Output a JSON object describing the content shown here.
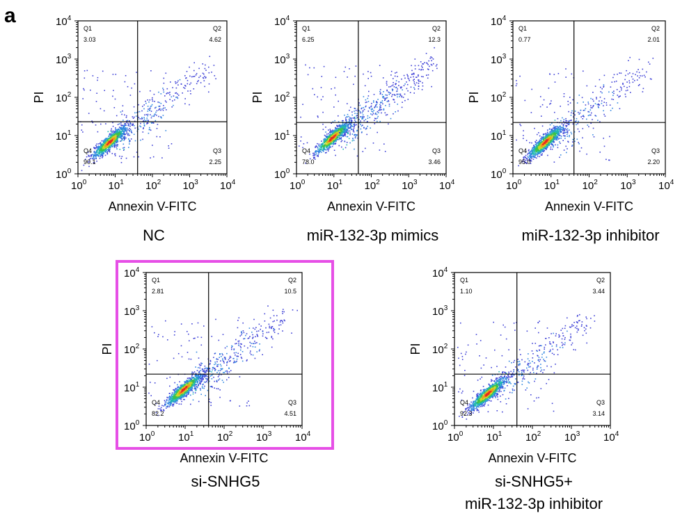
{
  "figure": {
    "panel_letter": "a",
    "highlight_color": "#e64fe6"
  },
  "chart_data": [
    {
      "type": "scatter",
      "caption": [
        "NC"
      ],
      "xlabel": "Annexin V-FITC",
      "ylabel": "PI",
      "scale": "log",
      "xlim": [
        1,
        10000
      ],
      "ylim": [
        1,
        10000
      ],
      "ticks": [
        "0",
        "1",
        "2",
        "3",
        "4"
      ],
      "tick_base": "10",
      "gate": {
        "x": 40,
        "y": 23
      },
      "quadrants": {
        "Q1": "3.03",
        "Q2": "4.62",
        "Q3": "2.25",
        "Q4": "90.1"
      },
      "population_center": [
        7,
        7
      ],
      "highlighted": false
    },
    {
      "type": "scatter",
      "caption": [
        "miR-132-3p mimics"
      ],
      "xlabel": "Annexin V-FITC",
      "ylabel": "PI",
      "scale": "log",
      "xlim": [
        1,
        10000
      ],
      "ylim": [
        1,
        10000
      ],
      "ticks": [
        "0",
        "1",
        "2",
        "3",
        "4"
      ],
      "tick_base": "10",
      "gate": {
        "x": 45,
        "y": 22
      },
      "quadrants": {
        "Q1": "6.25",
        "Q2": "12.3",
        "Q3": "3.46",
        "Q4": "78.0"
      },
      "population_center": [
        9,
        9
      ],
      "highlighted": false
    },
    {
      "type": "scatter",
      "caption": [
        "miR-132-3p inhibitor"
      ],
      "xlabel": "Annexin V-FITC",
      "ylabel": "PI",
      "scale": "log",
      "xlim": [
        1,
        10000
      ],
      "ylim": [
        1,
        10000
      ],
      "ticks": [
        "0",
        "1",
        "2",
        "3",
        "4"
      ],
      "tick_base": "10",
      "gate": {
        "x": 40,
        "y": 22
      },
      "quadrants": {
        "Q1": "0.77",
        "Q2": "2.01",
        "Q3": "2.20",
        "Q4": "95.0"
      },
      "population_center": [
        7,
        7
      ],
      "highlighted": false
    },
    {
      "type": "scatter",
      "caption": [
        "si-SNHG5"
      ],
      "xlabel": "Annexin V-FITC",
      "ylabel": "PI",
      "scale": "log",
      "xlim": [
        1,
        10000
      ],
      "ylim": [
        1,
        10000
      ],
      "ticks": [
        "0",
        "1",
        "2",
        "3",
        "4"
      ],
      "tick_base": "10",
      "gate": {
        "x": 40,
        "y": 22
      },
      "quadrants": {
        "Q1": "2.81",
        "Q2": "10.5",
        "Q3": "4.51",
        "Q4": "82.2"
      },
      "population_center": [
        9,
        9
      ],
      "highlighted": true
    },
    {
      "type": "scatter",
      "caption": [
        "si-SNHG5+",
        "miR-132-3p inhibitor"
      ],
      "xlabel": "Annexin V-FITC",
      "ylabel": "PI",
      "scale": "log",
      "xlim": [
        1,
        10000
      ],
      "ylim": [
        1,
        10000
      ],
      "ticks": [
        "0",
        "1",
        "2",
        "3",
        "4"
      ],
      "tick_base": "10",
      "gate": {
        "x": 40,
        "y": 22
      },
      "quadrants": {
        "Q1": "1.10",
        "Q2": "3.44",
        "Q3": "3.14",
        "Q4": "92.3"
      },
      "population_center": [
        7,
        7
      ],
      "highlighted": false
    }
  ]
}
